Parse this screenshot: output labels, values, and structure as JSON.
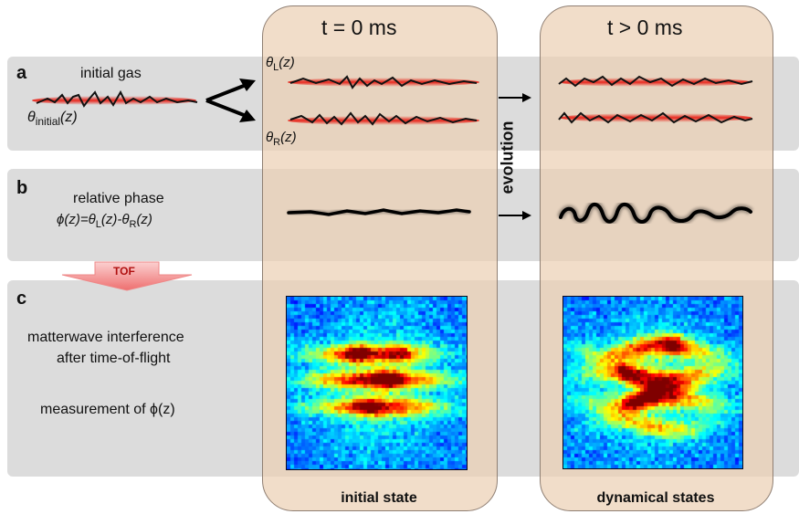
{
  "rows": {
    "a": {
      "letter": "a",
      "title": "initial gas",
      "theta_initial": "θ",
      "theta_initial_sub": "initial",
      "z": "(z)"
    },
    "b": {
      "letter": "b",
      "title": "relative phase",
      "phi_formula": "ϕ(z)=θ",
      "sub_L": "L",
      "mid": "(z)-θ",
      "sub_R": "R",
      "end": "(z)"
    },
    "c": {
      "letter": "c",
      "line1": "matterwave interference",
      "line2": "after time-of-flight",
      "line3": "measurement of  ϕ(z)"
    }
  },
  "labels": {
    "theta_L": "θ",
    "theta_L_sub": "L",
    "theta_L_z": "(z)",
    "theta_R": "θ",
    "theta_R_sub": "R",
    "theta_R_z": "(z)",
    "tof": "TOF",
    "evolution": "evolution"
  },
  "columns": {
    "initial": {
      "title": "t  = 0 ms",
      "footer": "initial state"
    },
    "dynamic": {
      "title": "t  > 0 ms",
      "footer": "dynamical states"
    }
  },
  "colors": {
    "row_bg": "#dcdcdc",
    "column_bg": "#ecd0b4",
    "gas_red": "#e8281e",
    "tof_arrow": "#f4a0a0"
  }
}
